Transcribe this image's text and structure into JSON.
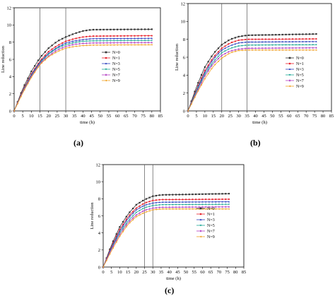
{
  "chart_data": [
    {
      "id": "a",
      "type": "line",
      "panel_label": "(a)",
      "xlabel": "time (h)",
      "ylabel": "Line reduction",
      "xlim": [
        0,
        85
      ],
      "ylim": [
        0,
        12
      ],
      "xticks": [
        0,
        5,
        10,
        15,
        20,
        25,
        30,
        35,
        40,
        45,
        50,
        55,
        60,
        65,
        70,
        75,
        80,
        85
      ],
      "yticks": [
        0,
        2,
        4,
        6,
        8,
        10,
        12
      ],
      "vlines": [
        15,
        30
      ],
      "legend_position": "right",
      "series": [
        {
          "name": "N=0",
          "color": "#333333",
          "marker": "square",
          "x_end": 80,
          "points": [
            [
              0,
              0
            ],
            [
              5,
              2.6
            ],
            [
              10,
              4.6
            ],
            [
              15,
              6.2
            ],
            [
              20,
              7.3
            ],
            [
              25,
              8.1
            ],
            [
              30,
              8.6
            ],
            [
              35,
              9.0
            ],
            [
              40,
              9.3
            ],
            [
              45,
              9.45
            ],
            [
              80,
              9.5
            ]
          ]
        },
        {
          "name": "N=1",
          "color": "#e8202a",
          "marker": "circle",
          "x_end": 80,
          "points": [
            [
              0,
              0
            ],
            [
              5,
              2.4
            ],
            [
              10,
              4.3
            ],
            [
              15,
              5.8
            ],
            [
              20,
              6.9
            ],
            [
              25,
              7.6
            ],
            [
              30,
              8.1
            ],
            [
              35,
              8.4
            ],
            [
              40,
              8.6
            ],
            [
              45,
              8.7
            ],
            [
              80,
              8.75
            ]
          ]
        },
        {
          "name": "N=3",
          "color": "#2a3fbf",
          "marker": "triangle-up",
          "x_end": 80,
          "points": [
            [
              0,
              0
            ],
            [
              5,
              2.3
            ],
            [
              10,
              4.2
            ],
            [
              15,
              5.7
            ],
            [
              20,
              6.7
            ],
            [
              25,
              7.4
            ],
            [
              30,
              7.9
            ],
            [
              35,
              8.15
            ],
            [
              40,
              8.3
            ],
            [
              45,
              8.4
            ],
            [
              80,
              8.45
            ]
          ]
        },
        {
          "name": "N=5",
          "color": "#1fa896",
          "marker": "triangle-down",
          "x_end": 80,
          "points": [
            [
              0,
              0
            ],
            [
              5,
              2.3
            ],
            [
              10,
              4.1
            ],
            [
              15,
              5.6
            ],
            [
              20,
              6.6
            ],
            [
              25,
              7.3
            ],
            [
              30,
              7.7
            ],
            [
              35,
              7.95
            ],
            [
              40,
              8.1
            ],
            [
              45,
              8.15
            ],
            [
              80,
              8.2
            ]
          ]
        },
        {
          "name": "N=7",
          "color": "#b33cc2",
          "marker": "diamond",
          "x_end": 80,
          "points": [
            [
              0,
              0
            ],
            [
              5,
              2.2
            ],
            [
              10,
              4.0
            ],
            [
              15,
              5.5
            ],
            [
              20,
              6.4
            ],
            [
              25,
              7.1
            ],
            [
              30,
              7.5
            ],
            [
              35,
              7.75
            ],
            [
              40,
              7.85
            ],
            [
              45,
              7.9
            ],
            [
              80,
              7.95
            ]
          ]
        },
        {
          "name": "N=9",
          "color": "#f0a020",
          "marker": "triangle-left",
          "x_end": 80,
          "points": [
            [
              0,
              0
            ],
            [
              5,
              2.1
            ],
            [
              10,
              3.9
            ],
            [
              15,
              5.4
            ],
            [
              20,
              6.3
            ],
            [
              25,
              6.9
            ],
            [
              30,
              7.3
            ],
            [
              35,
              7.5
            ],
            [
              40,
              7.6
            ],
            [
              45,
              7.65
            ],
            [
              80,
              7.7
            ]
          ]
        }
      ]
    },
    {
      "id": "b",
      "type": "line",
      "panel_label": "(b)",
      "xlabel": "time (h)",
      "ylabel": "Line reduction",
      "xlim": [
        0,
        85
      ],
      "ylim": [
        0,
        12
      ],
      "xticks": [
        0,
        5,
        10,
        15,
        20,
        25,
        30,
        35,
        40,
        45,
        50,
        55,
        60,
        65,
        70,
        75,
        80,
        85
      ],
      "yticks": [
        0,
        2,
        4,
        6,
        8,
        10,
        12
      ],
      "vlines": [
        20,
        35
      ],
      "legend_position": "bottom-right",
      "series": [
        {
          "name": "N=0",
          "color": "#333333",
          "marker": "square",
          "x_end": 77,
          "points": [
            [
              0,
              0
            ],
            [
              5,
              2.7
            ],
            [
              10,
              4.9
            ],
            [
              15,
              6.4
            ],
            [
              20,
              7.4
            ],
            [
              25,
              8.0
            ],
            [
              30,
              8.3
            ],
            [
              35,
              8.45
            ],
            [
              77,
              8.6
            ]
          ]
        },
        {
          "name": "N=1",
          "color": "#e8202a",
          "marker": "circle",
          "x_end": 77,
          "points": [
            [
              0,
              0
            ],
            [
              5,
              2.4
            ],
            [
              10,
              4.5
            ],
            [
              15,
              6.0
            ],
            [
              20,
              7.0
            ],
            [
              25,
              7.6
            ],
            [
              30,
              7.9
            ],
            [
              35,
              8.0
            ],
            [
              77,
              8.05
            ]
          ]
        },
        {
          "name": "N=3",
          "color": "#2a3fbf",
          "marker": "triangle-up",
          "x_end": 77,
          "points": [
            [
              0,
              0
            ],
            [
              5,
              2.3
            ],
            [
              10,
              4.3
            ],
            [
              15,
              5.8
            ],
            [
              20,
              6.8
            ],
            [
              25,
              7.3
            ],
            [
              30,
              7.6
            ],
            [
              35,
              7.7
            ],
            [
              77,
              7.75
            ]
          ]
        },
        {
          "name": "N=5",
          "color": "#1fa896",
          "marker": "triangle-down",
          "x_end": 77,
          "points": [
            [
              0,
              0
            ],
            [
              5,
              2.2
            ],
            [
              10,
              4.1
            ],
            [
              15,
              5.5
            ],
            [
              20,
              6.5
            ],
            [
              25,
              7.0
            ],
            [
              30,
              7.25
            ],
            [
              35,
              7.35
            ],
            [
              77,
              7.4
            ]
          ]
        },
        {
          "name": "N=7",
          "color": "#b33cc2",
          "marker": "diamond",
          "x_end": 77,
          "points": [
            [
              0,
              0
            ],
            [
              5,
              2.0
            ],
            [
              10,
              3.9
            ],
            [
              15,
              5.3
            ],
            [
              20,
              6.2
            ],
            [
              25,
              6.7
            ],
            [
              30,
              6.9
            ],
            [
              35,
              7.0
            ],
            [
              77,
              7.05
            ]
          ]
        },
        {
          "name": "N=9",
          "color": "#f0a020",
          "marker": "triangle-left",
          "x_end": 77,
          "points": [
            [
              0,
              0
            ],
            [
              5,
              1.9
            ],
            [
              10,
              3.6
            ],
            [
              15,
              5.0
            ],
            [
              20,
              5.9
            ],
            [
              25,
              6.5
            ],
            [
              30,
              6.75
            ],
            [
              35,
              6.8
            ],
            [
              77,
              6.8
            ]
          ]
        }
      ]
    },
    {
      "id": "c",
      "type": "line",
      "panel_label": "(c)",
      "xlabel": "time (h)",
      "ylabel": "Line reduction",
      "xlim": [
        0,
        85
      ],
      "ylim": [
        0,
        12
      ],
      "xticks": [
        0,
        5,
        10,
        15,
        20,
        25,
        30,
        35,
        40,
        45,
        50,
        55,
        60,
        65,
        70,
        75,
        80,
        85
      ],
      "yticks": [
        0,
        2,
        4,
        6,
        8,
        10,
        12
      ],
      "vlines": [
        25,
        30
      ],
      "legend_position": "bottom-right",
      "series": [
        {
          "name": "N=0",
          "color": "#333333",
          "marker": "square",
          "x_end": 77,
          "points": [
            [
              0,
              0
            ],
            [
              5,
              2.6
            ],
            [
              10,
              4.7
            ],
            [
              15,
              6.2
            ],
            [
              20,
              7.3
            ],
            [
              25,
              7.9
            ],
            [
              30,
              8.3
            ],
            [
              35,
              8.45
            ],
            [
              77,
              8.6
            ]
          ]
        },
        {
          "name": "N=1",
          "color": "#e8202a",
          "marker": "circle",
          "x_end": 77,
          "points": [
            [
              0,
              0
            ],
            [
              5,
              2.4
            ],
            [
              10,
              4.4
            ],
            [
              15,
              5.9
            ],
            [
              20,
              6.9
            ],
            [
              25,
              7.5
            ],
            [
              30,
              7.8
            ],
            [
              35,
              7.9
            ],
            [
              77,
              7.95
            ]
          ]
        },
        {
          "name": "N=3",
          "color": "#2a3fbf",
          "marker": "triangle-up",
          "x_end": 77,
          "points": [
            [
              0,
              0
            ],
            [
              5,
              2.3
            ],
            [
              10,
              4.2
            ],
            [
              15,
              5.7
            ],
            [
              20,
              6.7
            ],
            [
              25,
              7.25
            ],
            [
              30,
              7.5
            ],
            [
              35,
              7.6
            ],
            [
              77,
              7.65
            ]
          ]
        },
        {
          "name": "N=5",
          "color": "#1fa896",
          "marker": "triangle-down",
          "x_end": 77,
          "points": [
            [
              0,
              0
            ],
            [
              5,
              2.2
            ],
            [
              10,
              4.0
            ],
            [
              15,
              5.4
            ],
            [
              20,
              6.4
            ],
            [
              25,
              6.95
            ],
            [
              30,
              7.2
            ],
            [
              35,
              7.3
            ],
            [
              77,
              7.35
            ]
          ]
        },
        {
          "name": "N=7",
          "color": "#b33cc2",
          "marker": "diamond",
          "x_end": 77,
          "points": [
            [
              0,
              0
            ],
            [
              5,
              2.1
            ],
            [
              10,
              3.8
            ],
            [
              15,
              5.2
            ],
            [
              20,
              6.1
            ],
            [
              25,
              6.65
            ],
            [
              30,
              6.9
            ],
            [
              35,
              7.0
            ],
            [
              77,
              7.05
            ]
          ]
        },
        {
          "name": "N=9",
          "color": "#f0a020",
          "marker": "triangle-left",
          "x_end": 77,
          "points": [
            [
              0,
              0
            ],
            [
              5,
              1.9
            ],
            [
              10,
              3.6
            ],
            [
              15,
              5.0
            ],
            [
              20,
              5.9
            ],
            [
              25,
              6.4
            ],
            [
              30,
              6.7
            ],
            [
              35,
              6.8
            ],
            [
              77,
              6.8
            ]
          ]
        }
      ]
    }
  ]
}
